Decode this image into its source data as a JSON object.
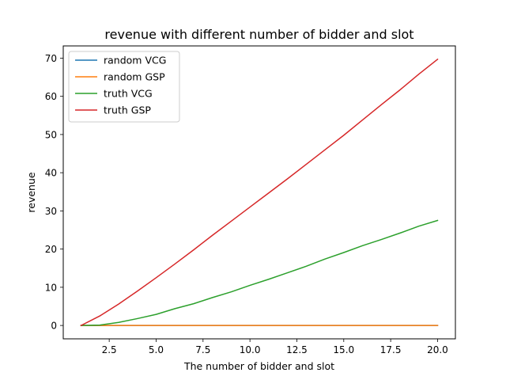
{
  "chart_data": {
    "type": "line",
    "title": "revenue with different number of bidder and slot",
    "xlabel": "The number of bidder and slot",
    "ylabel": "revenue",
    "xlim": [
      0.05,
      20.95
    ],
    "ylim": [
      -3.5,
      73.2
    ],
    "xticks": [
      2.5,
      5.0,
      7.5,
      10.0,
      12.5,
      15.0,
      17.5,
      20.0
    ],
    "xtick_labels": [
      "2.5",
      "5.0",
      "7.5",
      "10.0",
      "12.5",
      "15.0",
      "17.5",
      "20.0"
    ],
    "yticks": [
      0,
      10,
      20,
      30,
      40,
      50,
      60,
      70
    ],
    "ytick_labels": [
      "0",
      "10",
      "20",
      "30",
      "40",
      "50",
      "60",
      "70"
    ],
    "grid": false,
    "legend_position": "upper-left",
    "x": [
      1,
      2,
      3,
      4,
      5,
      6,
      7,
      8,
      9,
      10,
      11,
      12,
      13,
      14,
      15,
      16,
      17,
      18,
      19,
      20
    ],
    "series": [
      {
        "name": "random VCG",
        "color": "#1f77b4",
        "values": [
          0,
          0,
          0,
          0,
          0,
          0,
          0,
          0,
          0,
          0,
          0,
          0,
          0,
          0,
          0,
          0,
          0,
          0,
          0,
          0
        ]
      },
      {
        "name": "random GSP",
        "color": "#ff7f0e",
        "values": [
          0,
          0,
          0,
          0,
          0,
          0,
          0,
          0,
          0,
          0,
          0,
          0,
          0,
          0,
          0,
          0,
          0,
          0,
          0,
          0
        ]
      },
      {
        "name": "truth VCG",
        "color": "#2ca02c",
        "values": [
          0,
          0.1,
          0.8,
          1.8,
          2.9,
          4.4,
          5.7,
          7.3,
          8.8,
          10.5,
          12.1,
          13.8,
          15.5,
          17.4,
          19.1,
          20.9,
          22.5,
          24.2,
          26.0,
          27.5
        ]
      },
      {
        "name": "truth GSP",
        "color": "#d62728",
        "values": [
          0,
          2.5,
          5.6,
          9.0,
          12.5,
          16.1,
          19.8,
          23.6,
          27.3,
          31.0,
          34.7,
          38.4,
          42.2,
          46.0,
          49.8,
          53.8,
          57.8,
          61.7,
          65.8,
          69.7
        ]
      }
    ]
  }
}
